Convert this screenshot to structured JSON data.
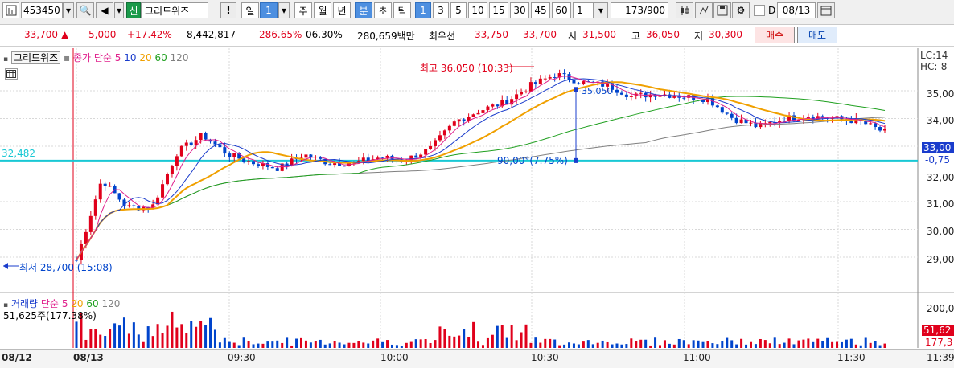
{
  "toolbar": {
    "code": "453450",
    "grid_badge": "신",
    "name": "그리드위즈",
    "alert": "!",
    "periods": [
      "일",
      "1",
      "주",
      "월",
      "년",
      "분",
      "초",
      "틱"
    ],
    "period_selected": "분",
    "intervals": [
      "1",
      "3",
      "5",
      "10",
      "15",
      "30",
      "45",
      "60"
    ],
    "interval_selected": "1",
    "count_value": "1",
    "position": "173/900",
    "date_prefix": "D",
    "date": "08/13"
  },
  "quote": {
    "price": "33,700",
    "change_arrow": "▲",
    "change": "5,000",
    "change_pct": "+17.42%",
    "volume": "8,442,817",
    "volume_ratio": "286.65%",
    "turnover_ratio": "06.30%",
    "amount": "280,659백만",
    "best_ask_label": "최우선",
    "best_ask": "33,750",
    "best_bid": "33,700",
    "open_label": "시",
    "open": "31,500",
    "high_label": "고",
    "high": "36,050",
    "low_label": "저",
    "low": "30,300",
    "buy_label": "매수",
    "sell_label": "매도"
  },
  "price_panel": {
    "legend_name": "그리드위즈",
    "legend_ma": "종가 단순",
    "ma_periods": [
      "5",
      "10",
      "20",
      "60",
      "120"
    ],
    "lc": "LC:14",
    "hc": "HC:-8",
    "hline_value": "32,482",
    "high_annot": "최고 36,050 (10:33)",
    "low_annot": "최저 28,700 (15:08)",
    "measure_value": "35,050",
    "measure_annot": "90,00°(7.75%)",
    "current_tag": "33,00",
    "current_tag_diff": "-0,75",
    "y_ticks": [
      "35,000",
      "34,000",
      "33,000",
      "32,000",
      "31,000",
      "30,000",
      "29,000"
    ]
  },
  "volume_panel": {
    "legend_name": "거래량",
    "legend_ma": "단순",
    "ma_periods": [
      "5",
      "20",
      "60",
      "120"
    ],
    "current": "51,625주(177.38%)",
    "y_tick": "200,0",
    "tag1": "51,62",
    "tag2": "177,3"
  },
  "x_axis": {
    "labels": [
      "08/12",
      "08/13",
      "09:30",
      "10:00",
      "10:30",
      "11:00",
      "11:30",
      "11:39"
    ]
  },
  "colors": {
    "up": "#e0001b",
    "down": "#0044cc",
    "ma5": "#e0208c",
    "ma10": "#1a3ccc",
    "ma20": "#f0a000",
    "ma60": "#20a020",
    "ma120": "#808080",
    "hline": "#19c8d4"
  },
  "chart_data": {
    "type": "line",
    "x": [
      "09:00",
      "09:05",
      "09:10",
      "09:15",
      "09:20",
      "09:25",
      "09:30",
      "09:35",
      "09:40",
      "09:45",
      "09:50",
      "09:55",
      "10:00",
      "10:05",
      "10:10",
      "10:15",
      "10:20",
      "10:25",
      "10:30",
      "10:35",
      "10:40",
      "10:45",
      "10:50",
      "10:55",
      "11:00",
      "11:05",
      "11:10",
      "11:15",
      "11:20",
      "11:25",
      "11:30",
      "11:35",
      "11:39"
    ],
    "series": [
      {
        "name": "그리드위즈",
        "values": [
          28900,
          31800,
          30800,
          30800,
          32800,
          33400,
          32700,
          32400,
          32200,
          32700,
          32400,
          32400,
          32600,
          32500,
          32900,
          33900,
          34300,
          34600,
          35200,
          35600,
          35300,
          35200,
          34800,
          34900,
          34800,
          34700,
          34000,
          33700,
          34000,
          34100,
          34000,
          33900,
          33500
        ]
      }
    ],
    "ylim": [
      28500,
      35700
    ],
    "hline": 32482,
    "high": 36050,
    "low": 28700
  }
}
